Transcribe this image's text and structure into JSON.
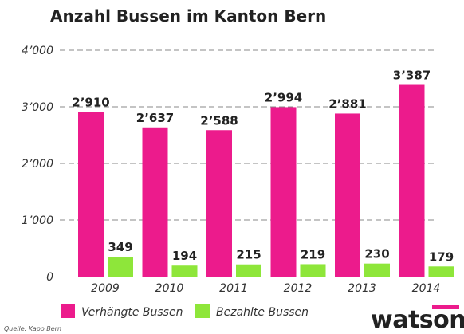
{
  "source_note": "Quelle: Kapo Bern",
  "brand": "watson",
  "colors": {
    "verhaengt": "#ec1b8c",
    "bezahlt": "#8ee63a",
    "brand_accent": "#ec1b8c"
  },
  "chart_data": {
    "type": "bar",
    "title": "Anzahl Bussen im Kanton Bern",
    "categories": [
      "2009",
      "2010",
      "2011",
      "2012",
      "2013",
      "2014"
    ],
    "series": [
      {
        "name": "Verhängte Bussen",
        "values": [
          2910,
          2637,
          2588,
          2994,
          2881,
          3387
        ],
        "labels": [
          "2’910",
          "2’637",
          "2’588",
          "2’994",
          "2’881",
          "3’387"
        ]
      },
      {
        "name": "Bezahlte Bussen",
        "values": [
          349,
          194,
          215,
          219,
          230,
          179
        ],
        "labels": [
          "349",
          "194",
          "215",
          "219",
          "230",
          "179"
        ]
      }
    ],
    "yticks": [
      0,
      1000,
      2000,
      3000,
      4000
    ],
    "ytick_labels": [
      "0",
      "1’000",
      "2’000",
      "3’000",
      "4’000"
    ],
    "ylim": [
      0,
      4000
    ],
    "grid": true,
    "legend": "bottom-left"
  }
}
